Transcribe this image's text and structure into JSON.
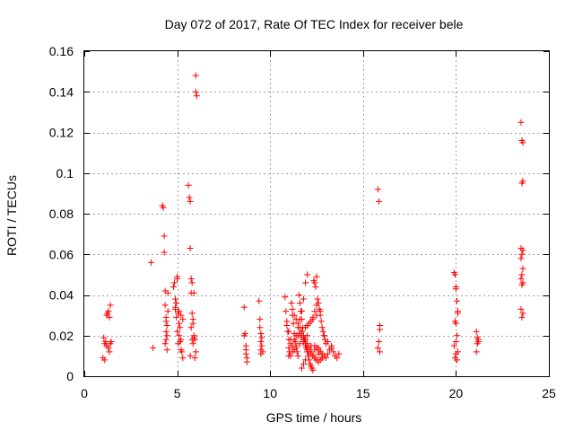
{
  "chart_data": {
    "type": "scatter",
    "title": "Day 072 of 2017, Rate Of TEC Index for receiver bele",
    "xlabel": "GPS time / hours",
    "ylabel": "ROTI / TECUs",
    "xlim": [
      0,
      25
    ],
    "ylim": [
      0,
      0.16
    ],
    "xticks": [
      0,
      5,
      10,
      15,
      20,
      25
    ],
    "yticks": [
      0,
      0.02,
      0.04,
      0.06,
      0.08,
      0.1,
      0.12,
      0.14,
      0.16
    ],
    "xtick_labels": [
      "0",
      "5",
      "10",
      "15",
      "20",
      "25"
    ],
    "ytick_labels": [
      "0",
      "0.02",
      "0.04",
      "0.06",
      "0.08",
      "0.1",
      "0.12",
      "0.14",
      "0.16"
    ],
    "grid": true,
    "marker": "plus",
    "color": "#ff0000",
    "series": [
      {
        "x": [
          1.0,
          1.05,
          1.1,
          1.15,
          1.2,
          1.25,
          1.3,
          1.3,
          1.35,
          1.35,
          1.4,
          1.4,
          1.45,
          1.1,
          1.2,
          3.6,
          3.7,
          4.2,
          4.25,
          4.3,
          4.3,
          4.35,
          4.35,
          4.4,
          4.4,
          4.45,
          4.45,
          4.5,
          4.5,
          4.4,
          4.35,
          4.45,
          4.4,
          4.8,
          4.85,
          4.9,
          4.9,
          4.95,
          5.0,
          5.0,
          5.05,
          5.1,
          5.1,
          5.15,
          5.2,
          5.2,
          5.25,
          5.3,
          4.9,
          5.0,
          5.1,
          5.2,
          5.3,
          4.95,
          5.05,
          5.15,
          5.6,
          5.65,
          5.7,
          5.7,
          5.75,
          5.75,
          5.8,
          5.8,
          5.85,
          5.85,
          5.9,
          5.9,
          5.95,
          6.0,
          6.0,
          6.05,
          5.7,
          5.8,
          5.9,
          6.0,
          5.95,
          5.85,
          5.75,
          8.6,
          8.65,
          8.7,
          8.7,
          8.75,
          8.75,
          8.6,
          8.7,
          9.4,
          9.45,
          9.5,
          9.5,
          9.55,
          9.6,
          9.5,
          9.45,
          9.55,
          9.5,
          10.8,
          10.85,
          10.9,
          10.95,
          11.0,
          11.0,
          11.05,
          11.1,
          11.15,
          11.2,
          11.25,
          11.3,
          11.35,
          11.4,
          11.45,
          11.5,
          10.9,
          11.0,
          11.1,
          11.2,
          11.3,
          11.4,
          11.5,
          11.6,
          11.7,
          11.8,
          11.9,
          12.0,
          11.55,
          11.6,
          11.65,
          11.7,
          11.75,
          11.8,
          11.85,
          11.9,
          11.95,
          12.0,
          12.05,
          12.1,
          12.15,
          12.2,
          12.25,
          12.3,
          11.6,
          11.7,
          11.8,
          11.9,
          12.0,
          12.1,
          12.2,
          12.3,
          12.4,
          12.5,
          12.6,
          12.7,
          12.35,
          12.4,
          12.45,
          12.5,
          12.55,
          12.6,
          12.65,
          12.7,
          12.75,
          12.8,
          12.85,
          12.9,
          12.95,
          13.0,
          12.4,
          12.5,
          12.6,
          12.7,
          12.8,
          12.9,
          13.0,
          13.1,
          13.2,
          13.3,
          13.4,
          13.5,
          13.6,
          13.7,
          11.2,
          11.3,
          11.4,
          11.5,
          11.6,
          11.7,
          11.8,
          11.9,
          12.0,
          12.1,
          12.2,
          12.3,
          12.4,
          12.5,
          12.6,
          12.7,
          12.8,
          11.1,
          11.3,
          11.5,
          11.7,
          11.9,
          12.1,
          12.3,
          12.5,
          12.7,
          12.9,
          13.1,
          13.3,
          11.0,
          11.2,
          11.4,
          11.6,
          11.8,
          12.0,
          12.2,
          12.4,
          12.6,
          12.8,
          11.7,
          11.8,
          11.9,
          12.0,
          12.2,
          12.3,
          12.4,
          12.5,
          15.8,
          15.85,
          15.9,
          15.9,
          15.85,
          15.8,
          15.9,
          19.9,
          19.95,
          20.0,
          20.0,
          20.05,
          20.1,
          20.1,
          19.95,
          20.0,
          20.05,
          20.0,
          19.9,
          20.1,
          20.0,
          19.95,
          20.05,
          21.1,
          21.15,
          21.2,
          21.2,
          21.1,
          21.15,
          23.5,
          23.55,
          23.6,
          23.6,
          23.55,
          23.5,
          23.6,
          23.55,
          23.5,
          23.6,
          23.55,
          23.5,
          23.6,
          23.55,
          23.5,
          23.6,
          23.55
        ],
        "y": [
          0.009,
          0.019,
          0.016,
          0.017,
          0.015,
          0.031,
          0.032,
          0.014,
          0.029,
          0.012,
          0.035,
          0.016,
          0.017,
          0.008,
          0.03,
          0.056,
          0.014,
          0.084,
          0.083,
          0.069,
          0.061,
          0.042,
          0.035,
          0.022,
          0.018,
          0.013,
          0.025,
          0.041,
          0.032,
          0.027,
          0.016,
          0.02,
          0.029,
          0.044,
          0.046,
          0.038,
          0.033,
          0.029,
          0.049,
          0.048,
          0.031,
          0.026,
          0.02,
          0.017,
          0.013,
          0.03,
          0.012,
          0.009,
          0.034,
          0.022,
          0.032,
          0.018,
          0.028,
          0.036,
          0.016,
          0.024,
          0.094,
          0.088,
          0.086,
          0.063,
          0.048,
          0.041,
          0.046,
          0.031,
          0.028,
          0.026,
          0.041,
          0.019,
          0.018,
          0.148,
          0.14,
          0.138,
          0.01,
          0.018,
          0.02,
          0.012,
          0.009,
          0.016,
          0.024,
          0.034,
          0.021,
          0.013,
          0.011,
          0.009,
          0.007,
          0.02,
          0.015,
          0.037,
          0.028,
          0.021,
          0.017,
          0.015,
          0.012,
          0.011,
          0.024,
          0.019,
          0.013,
          0.039,
          0.032,
          0.027,
          0.022,
          0.018,
          0.014,
          0.012,
          0.01,
          0.036,
          0.03,
          0.026,
          0.021,
          0.017,
          0.015,
          0.012,
          0.01,
          0.025,
          0.022,
          0.018,
          0.015,
          0.013,
          0.02,
          0.024,
          0.028,
          0.032,
          0.038,
          0.046,
          0.05,
          0.04,
          0.036,
          0.032,
          0.028,
          0.024,
          0.02,
          0.018,
          0.016,
          0.014,
          0.012,
          0.01,
          0.008,
          0.006,
          0.005,
          0.004,
          0.003,
          0.021,
          0.019,
          0.017,
          0.015,
          0.013,
          0.012,
          0.011,
          0.01,
          0.009,
          0.008,
          0.014,
          0.012,
          0.047,
          0.046,
          0.044,
          0.049,
          0.038,
          0.036,
          0.033,
          0.03,
          0.027,
          0.024,
          0.022,
          0.02,
          0.018,
          0.016,
          0.015,
          0.014,
          0.013,
          0.012,
          0.011,
          0.01,
          0.009,
          0.011,
          0.013,
          0.015,
          0.012,
          0.01,
          0.009,
          0.011,
          0.033,
          0.03,
          0.028,
          0.026,
          0.024,
          0.022,
          0.02,
          0.018,
          0.016,
          0.014,
          0.012,
          0.01,
          0.009,
          0.008,
          0.007,
          0.008,
          0.009,
          0.016,
          0.018,
          0.02,
          0.022,
          0.024,
          0.026,
          0.028,
          0.03,
          0.032,
          0.02,
          0.017,
          0.014,
          0.01,
          0.012,
          0.014,
          0.016,
          0.018,
          0.02,
          0.015,
          0.013,
          0.011,
          0.009,
          0.004,
          0.006,
          0.008,
          0.025,
          0.027,
          0.029,
          0.032,
          0.035,
          0.092,
          0.086,
          0.025,
          0.023,
          0.017,
          0.014,
          0.012,
          0.051,
          0.05,
          0.044,
          0.043,
          0.037,
          0.032,
          0.031,
          0.027,
          0.026,
          0.02,
          0.017,
          0.015,
          0.012,
          0.011,
          0.009,
          0.008,
          0.022,
          0.019,
          0.017,
          0.018,
          0.012,
          0.016,
          0.125,
          0.116,
          0.115,
          0.096,
          0.095,
          0.063,
          0.062,
          0.06,
          0.058,
          0.053,
          0.05,
          0.048,
          0.046,
          0.045,
          0.033,
          0.031,
          0.029
        ]
      }
    ]
  }
}
